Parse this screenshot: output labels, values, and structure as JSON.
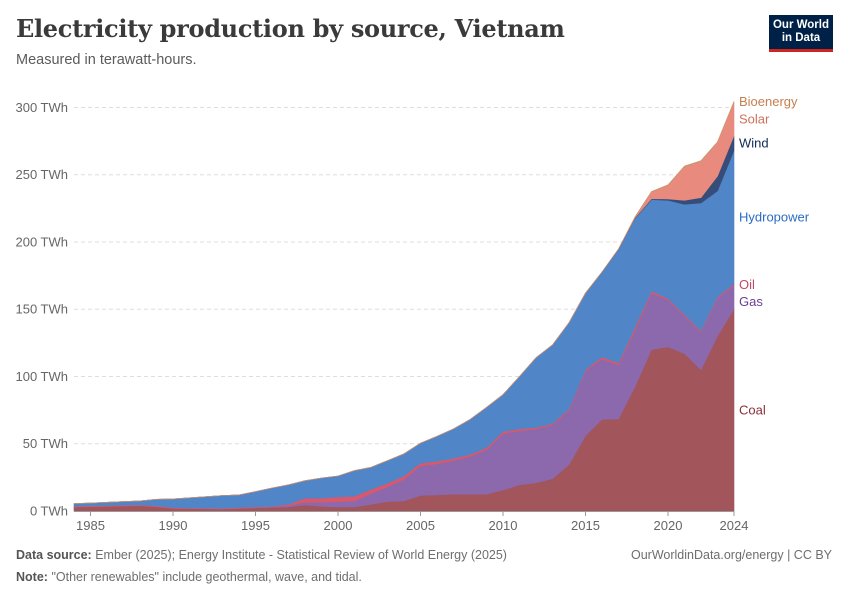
{
  "header": {
    "title": "Electricity production by source, Vietnam",
    "subtitle": "Measured in terawatt-hours.",
    "logo_line1": "Our World",
    "logo_line2": "in Data"
  },
  "footer": {
    "source_label": "Data source:",
    "source_text": "Ember (2025); Energy Institute - Statistical Review of World Energy (2025)",
    "note_label": "Note:",
    "note_text": "\"Other renewables\" include geothermal, wave, and tidal.",
    "link_text": "OurWorldinData.org/energy | CC BY"
  },
  "chart_data": {
    "type": "area",
    "stacked": true,
    "title": "Electricity production by source, Vietnam",
    "ylabel": "TWh",
    "ylim": [
      0,
      310
    ],
    "y_ticks": [
      0,
      50,
      100,
      150,
      200,
      250,
      300
    ],
    "y_tick_labels": [
      "0 TWh",
      "50 TWh",
      "100 TWh",
      "150 TWh",
      "200 TWh",
      "250 TWh",
      "300 TWh"
    ],
    "x_ticks": [
      1985,
      1990,
      1995,
      2000,
      2005,
      2010,
      2015,
      2020,
      2024
    ],
    "x_tick_labels": [
      "1985",
      "1990",
      "1995",
      "2000",
      "2005",
      "2010",
      "2015",
      "2020",
      "2024"
    ],
    "x": [
      1984,
      1985,
      1986,
      1987,
      1988,
      1989,
      1990,
      1991,
      1992,
      1993,
      1994,
      1995,
      1996,
      1997,
      1998,
      1999,
      2000,
      2001,
      2002,
      2003,
      2004,
      2005,
      2006,
      2007,
      2008,
      2009,
      2010,
      2011,
      2012,
      2013,
      2014,
      2015,
      2016,
      2017,
      2018,
      2019,
      2020,
      2021,
      2022,
      2023,
      2024
    ],
    "series": [
      {
        "name": "Coal",
        "color": "#a2555a",
        "label_color": "#883039",
        "values": [
          3.0,
          3.2,
          3.5,
          3.8,
          4.0,
          3.2,
          2.0,
          1.8,
          1.6,
          1.5,
          2.0,
          2.4,
          2.6,
          3.0,
          4.5,
          3.5,
          3.0,
          3.0,
          5.0,
          7.0,
          7.5,
          11.5,
          12.0,
          12.5,
          12.5,
          12.5,
          15.5,
          19.5,
          21.0,
          24.0,
          34.5,
          56.0,
          68.0,
          68.5,
          92.5,
          120.0,
          122.0,
          117.0,
          105.0,
          130.0,
          150.0
        ]
      },
      {
        "name": "Gas",
        "color": "#8c68ad",
        "label_color": "#6d3e91",
        "values": [
          0,
          0,
          0,
          0,
          0,
          0,
          0,
          0,
          0,
          0,
          0,
          0,
          0.5,
          1.0,
          2.0,
          3.0,
          4.0,
          4.5,
          8.0,
          11.0,
          16.0,
          22.0,
          23.0,
          25.0,
          28.0,
          33.0,
          42.0,
          40.0,
          40.0,
          40.0,
          40.5,
          48.0,
          45.0,
          40.0,
          42.0,
          42.0,
          35.0,
          28.0,
          28.0,
          28.0,
          18.0
        ]
      },
      {
        "name": "Oil",
        "color": "#d9586b",
        "label_color": "#c24a64",
        "values": [
          0.5,
          0.5,
          0.5,
          0.5,
          0.5,
          0.5,
          0.5,
          0.5,
          0.5,
          0.5,
          0.5,
          0.5,
          0.5,
          1.0,
          3.0,
          3.0,
          3.5,
          3.5,
          3.0,
          2.5,
          2.5,
          2.0,
          2.0,
          1.5,
          1.5,
          1.5,
          1.5,
          1.5,
          1.0,
          1.0,
          1.0,
          1.0,
          1.5,
          1.5,
          2.0,
          1.5,
          1.0,
          1.0,
          1.0,
          1.0,
          1.0
        ]
      },
      {
        "name": "Hydropower",
        "color": "#5085c8",
        "label_color": "#2c6cc3",
        "values": [
          2.0,
          2.2,
          2.5,
          2.7,
          3.0,
          5.0,
          6.5,
          7.5,
          8.5,
          9.5,
          9.5,
          11.5,
          13.5,
          14.5,
          13.0,
          15.0,
          15.5,
          19.0,
          16.5,
          17.0,
          16.5,
          15.0,
          18.5,
          22.0,
          26.0,
          30.0,
          27.5,
          39.0,
          52.0,
          58.5,
          64.0,
          57.0,
          63.0,
          84.5,
          81.0,
          68.0,
          73.0,
          82.0,
          95.0,
          79.0,
          99.0
        ]
      },
      {
        "name": "Wind",
        "color": "#364d79",
        "label_color": "#102a54",
        "values": [
          0,
          0,
          0,
          0,
          0,
          0,
          0,
          0,
          0,
          0,
          0,
          0,
          0,
          0,
          0,
          0,
          0,
          0,
          0,
          0,
          0,
          0,
          0,
          0,
          0,
          0,
          0,
          0,
          0,
          0,
          0,
          0,
          0.2,
          0.3,
          0.5,
          0.7,
          1.0,
          3.0,
          4.0,
          11.0,
          11.0
        ]
      },
      {
        "name": "Solar",
        "color": "#e88b7e",
        "label_color": "#d0705e",
        "values": [
          0,
          0,
          0,
          0,
          0,
          0,
          0,
          0,
          0,
          0,
          0,
          0,
          0,
          0,
          0,
          0,
          0,
          0,
          0,
          0,
          0,
          0,
          0,
          0,
          0,
          0,
          0,
          0,
          0,
          0,
          0,
          0,
          0,
          0,
          0.5,
          5.0,
          10.0,
          25.0,
          27.0,
          25.0,
          25.0
        ]
      },
      {
        "name": "Bioenergy",
        "color": "#c9976d",
        "label_color": "#c67f4e",
        "values": [
          0,
          0,
          0,
          0,
          0,
          0,
          0,
          0,
          0,
          0,
          0,
          0,
          0,
          0,
          0,
          0,
          0,
          0,
          0,
          0,
          0,
          0,
          0,
          0,
          0,
          0,
          0,
          0,
          0,
          0,
          0,
          0,
          0,
          0,
          0.2,
          0.3,
          0.5,
          0.5,
          0.5,
          0.5,
          0.5
        ]
      }
    ],
    "grid": true,
    "legend": "right, inline labels"
  }
}
